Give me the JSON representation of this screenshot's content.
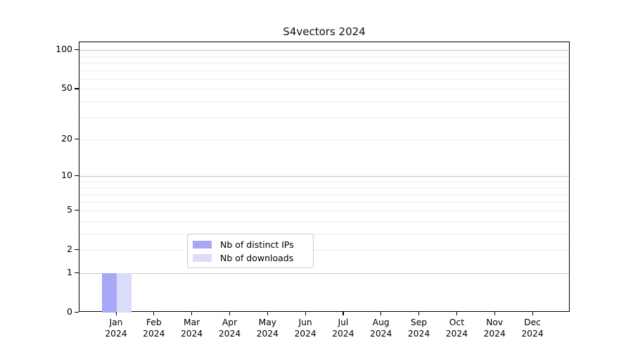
{
  "chart_data": {
    "type": "bar",
    "title": "S4vectors 2024",
    "categories": [
      "Jan",
      "Feb",
      "Mar",
      "Apr",
      "May",
      "Jun",
      "Jul",
      "Aug",
      "Sep",
      "Oct",
      "Nov",
      "Dec"
    ],
    "year_label": "2024",
    "series": [
      {
        "name": "Nb of distinct IPs",
        "color": "#a8a8f6",
        "values": [
          1,
          0,
          0,
          0,
          0,
          0,
          0,
          0,
          0,
          0,
          0,
          0
        ]
      },
      {
        "name": "Nb of downloads",
        "color": "#dbdbfa",
        "values": [
          1,
          0,
          0,
          0,
          0,
          0,
          0,
          0,
          0,
          0,
          0,
          0
        ]
      }
    ],
    "y_axis": {
      "scale": "log10(1+x)",
      "ticks": [
        0,
        1,
        2,
        5,
        10,
        20,
        50,
        100
      ],
      "max": 115,
      "major_gridlines": [
        1,
        10,
        100
      ],
      "minor_gridlines": [
        2,
        3,
        4,
        5,
        6,
        7,
        8,
        9,
        20,
        30,
        40,
        50,
        60,
        70,
        80,
        90
      ]
    },
    "legend_position": "bottom-center",
    "colors": {
      "major_gridline": "#c3c3c3",
      "minor_gridline": "#ededed",
      "axis": "#000000",
      "background": "#ffffff"
    }
  }
}
